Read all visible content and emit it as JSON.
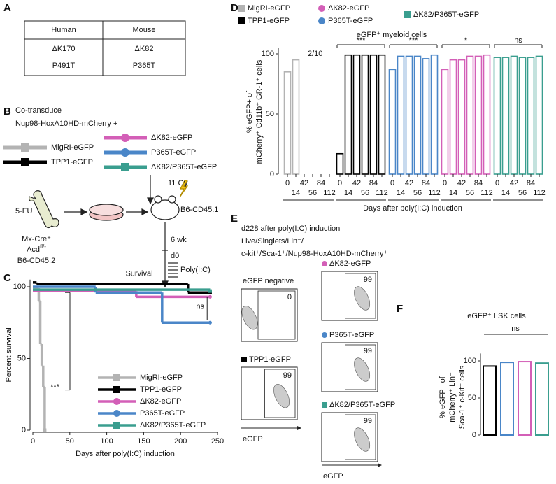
{
  "panels": [
    "A",
    "B",
    "C",
    "D",
    "E",
    "F"
  ],
  "table": {
    "header": [
      "Human",
      "Mouse"
    ],
    "rows": [
      [
        "ΔK170",
        "ΔK82"
      ],
      [
        "P491T",
        "P365T"
      ]
    ]
  },
  "diagram": {
    "title": "Co-transduce",
    "subtitle": "Nup98-HoxA10HD-mCherry +",
    "constructs": [
      {
        "label": "MigRI-eGFP",
        "color": "#b3b3b3",
        "marker": "square"
      },
      {
        "label": "TPP1-eGFP",
        "color": "#000000",
        "marker": "square"
      },
      {
        "label": "ΔK82-eGFP",
        "color": "#d35fb7",
        "marker": "circle"
      },
      {
        "label": "P365T-eGFP",
        "color": "#4a86c8",
        "marker": "circle"
      },
      {
        "label": "ΔK82/P365T-eGFP",
        "color": "#3a9e8f",
        "marker": "square"
      }
    ],
    "drug": "5-FU",
    "donor": [
      "Mx-Cre⁺",
      {
        "text": "Acd",
        "sup": "fl/-"
      },
      "B6-CD45.2"
    ],
    "irradiation": "11 Gy",
    "recipient": "B6-CD45.1",
    "wait": "6 wk",
    "day": "d0",
    "treatment": "Poly(I:C)"
  },
  "chart_data": [
    {
      "type": "line",
      "step": true,
      "title": "Survival",
      "xlabel": "Days after poly(I:C) induction",
      "ylabel": "Percent survival",
      "xlim": [
        0,
        250
      ],
      "xticks": [
        0,
        50,
        100,
        150,
        200,
        250
      ],
      "ylim": [
        0,
        105
      ],
      "yticks": [
        0,
        50,
        100
      ],
      "annotations": [
        "***",
        "ns"
      ],
      "series": [
        {
          "name": "MigRI-eGFP",
          "color": "#b3b3b3",
          "marker": "square",
          "x": [
            0,
            8,
            10,
            12,
            14,
            16
          ],
          "values": [
            99,
            90,
            60,
            45,
            30,
            0
          ]
        },
        {
          "name": "TPP1-eGFP",
          "color": "#000000",
          "marker": "square",
          "x": [
            0,
            5,
            210,
            240
          ],
          "values": [
            103,
            102,
            96,
            96
          ]
        },
        {
          "name": "ΔK82-eGFP",
          "color": "#d35fb7",
          "marker": "circle",
          "x": [
            0,
            140,
            240
          ],
          "values": [
            97,
            93,
            93
          ]
        },
        {
          "name": "P365T-eGFP",
          "color": "#4a86c8",
          "marker": "circle",
          "x": [
            0,
            85,
            175,
            240
          ],
          "values": [
            100,
            96,
            75,
            75
          ]
        },
        {
          "name": "ΔK82/P365T-eGFP",
          "color": "#3a9e8f",
          "marker": "square",
          "x": [
            0,
            240
          ],
          "values": [
            98,
            97
          ]
        }
      ]
    },
    {
      "type": "bar",
      "title": "eGFP⁺ myeloid cells",
      "xlabel": "Days after poly(I:C) induction",
      "ylabel": [
        "% eGFP+ of",
        "mCherry⁺ Cd11b⁺ GR-1⁺ cells"
      ],
      "categories": [
        "0",
        "14",
        "42",
        "56",
        "84",
        "112"
      ],
      "ylim": [
        0,
        105
      ],
      "yticks": [
        0,
        50,
        100
      ],
      "note": "2/10",
      "series": [
        {
          "name": "MigRI-eGFP",
          "color": "#b3b3b3",
          "marker": "square",
          "values": [
            85,
            95,
            null,
            null,
            null,
            null
          ]
        },
        {
          "name": "TPP1-eGFP",
          "color": "#000000",
          "marker": "square",
          "values": [
            17,
            99,
            99,
            99,
            99,
            99
          ],
          "significance": "***"
        },
        {
          "name": "P365T-eGFP",
          "color": "#4a86c8",
          "marker": "circle",
          "values": [
            87,
            98,
            98,
            98,
            96,
            99
          ],
          "significance": "***"
        },
        {
          "name": "ΔK82-eGFP",
          "color": "#d35fb7",
          "marker": "circle",
          "values": [
            87,
            95,
            95,
            98,
            98,
            99
          ],
          "significance": "*"
        },
        {
          "name": "ΔK82/P365T-eGFP",
          "color": "#3a9e8f",
          "marker": "square",
          "values": [
            97,
            97,
            98,
            97,
            97,
            98
          ],
          "significance": "ns"
        }
      ]
    },
    {
      "type": "bar",
      "title": "eGFP⁺ LSK cells",
      "ylabel": [
        "% eGFP⁺ of",
        "mCherry⁺ Lin⁻",
        "Sca-1⁺ c-Kit⁺ cells"
      ],
      "categories": [
        null,
        null,
        null,
        null
      ],
      "values": [
        93,
        98,
        99,
        97
      ],
      "colors": [
        "#000000",
        "#4a86c8",
        "#d35fb7",
        "#3a9e8f"
      ],
      "ylim": [
        0,
        110
      ],
      "yticks": [
        0,
        50,
        100
      ],
      "annotations": [
        "ns"
      ]
    }
  ],
  "flow": {
    "header": [
      "d228 after poly(I:C) induction",
      "Live/Singlets/Lin⁻/",
      "c-kit⁺/Sca-1⁺/Nup98-HoxA10HD-mCherry⁺"
    ],
    "axis": "eGFP",
    "plots": [
      {
        "label": "eGFP negative",
        "gate": 0
      },
      {
        "label": "TPP1-eGFP",
        "gate": 99,
        "color": "#000000",
        "marker": "square"
      },
      {
        "label": "ΔK82-eGFP",
        "gate": 99,
        "color": "#d35fb7",
        "marker": "circle"
      },
      {
        "label": "P365T-eGFP",
        "gate": 99,
        "color": "#4a86c8",
        "marker": "circle"
      },
      {
        "label": "ΔK82/P365T-eGFP",
        "gate": 99,
        "color": "#3a9e8f",
        "marker": "square"
      }
    ]
  }
}
